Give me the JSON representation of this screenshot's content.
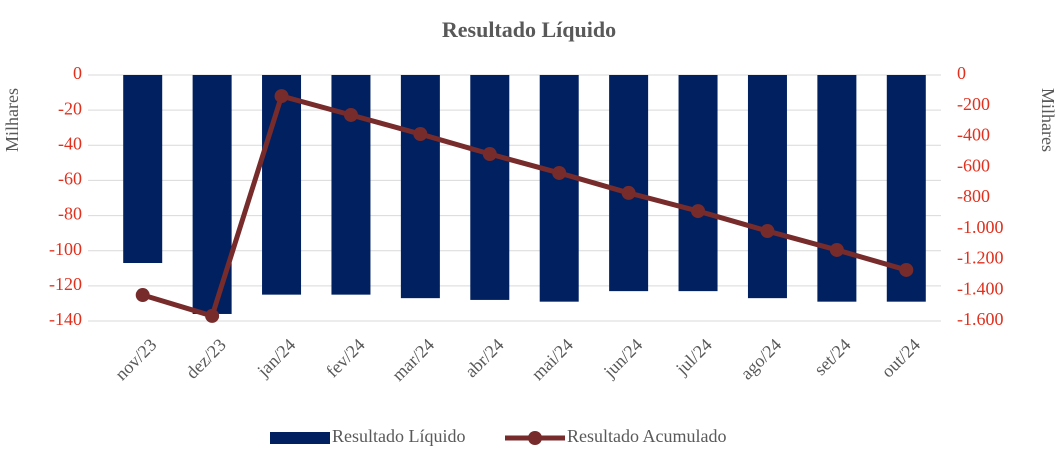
{
  "chart_data": {
    "type": "bar+line",
    "title": "Resultado Líquido",
    "ylabel": "Milhares",
    "y2label": "Milhares",
    "categories": [
      "nov/23",
      "dez/23",
      "jan/24",
      "fev/24",
      "mar/24",
      "abr/24",
      "mai/24",
      "jun/24",
      "jul/24",
      "ago/24",
      "set/24",
      "out/24"
    ],
    "series": [
      {
        "name": "Resultado Líquido",
        "type": "bar",
        "color": "#002060",
        "values": [
          -107,
          -136,
          -125,
          -125,
          -127,
          -128,
          -129,
          -123,
          -123,
          -127,
          -129,
          -129
        ]
      },
      {
        "name": "Resultado Acumulado",
        "type": "line",
        "axis": "y2",
        "color": "#772b2b",
        "values": [
          -1431,
          -1567,
          -137,
          -260,
          -384,
          -514,
          -637,
          -767,
          -885,
          -1015,
          -1138,
          -1268
        ]
      }
    ],
    "ylim": [
      -140,
      0
    ],
    "yticks": [
      0,
      -20,
      -40,
      -60,
      -80,
      -100,
      -120,
      -140
    ],
    "y2lim": [
      -1600,
      0
    ],
    "y2ticks": [
      0,
      -200,
      -400,
      -600,
      -800,
      {
        "value": -1000,
        "label": "-1.000"
      },
      {
        "value": -1200,
        "label": "-1.200"
      },
      {
        "value": -1400,
        "label": "-1.400"
      },
      {
        "value": -1600,
        "label": "-1.600"
      }
    ],
    "grid": true,
    "legend": "bottom"
  }
}
